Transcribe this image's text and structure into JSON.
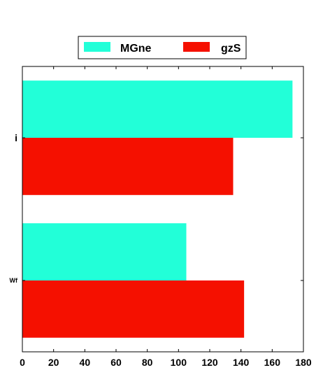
{
  "chart_data": {
    "type": "bar",
    "orientation": "horizontal",
    "categories": [
      "i",
      "Wf"
    ],
    "series": [
      {
        "name": "MGne",
        "color": "#22ffd8",
        "values": [
          173,
          105
        ]
      },
      {
        "name": "gzS",
        "color": "#f51000",
        "values": [
          135,
          142
        ]
      }
    ],
    "xlim": [
      0,
      180
    ],
    "xticks": [
      "0",
      "20",
      "40",
      "60",
      "80",
      "100",
      "120",
      "140",
      "160",
      "180"
    ],
    "title": "",
    "xlabel": "",
    "ylabel": "",
    "grid": false,
    "legend_position": "top-center"
  }
}
